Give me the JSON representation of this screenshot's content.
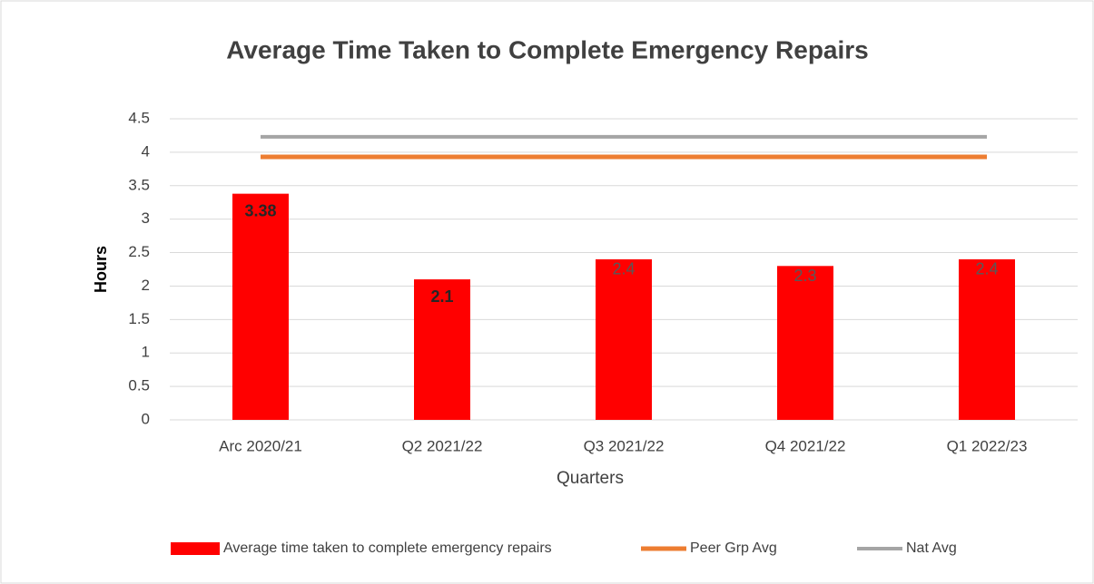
{
  "chart_data": {
    "type": "bar",
    "title": "Average Time Taken to Complete Emergency Repairs",
    "y_label": "Hours",
    "x_label": "Quarters",
    "categories": [
      "Arc 2020/21",
      "Q2 2021/22",
      "Q3 2021/22",
      "Q4 2021/22",
      "Q1 2022/23"
    ],
    "series": [
      {
        "name": "Average time taken to complete emergency repairs",
        "type": "bar",
        "color": "#ff0000",
        "values": [
          3.38,
          2.1,
          2.4,
          2.3,
          2.4
        ]
      },
      {
        "name": "Peer Grp Avg",
        "type": "line",
        "color": "#ed7d31",
        "values": [
          3.93,
          3.93,
          3.93,
          3.93,
          3.93
        ]
      },
      {
        "name": "Nat Avg",
        "type": "line",
        "color": "#a5a5a5",
        "values": [
          4.23,
          4.23,
          4.23,
          4.23,
          4.23
        ]
      }
    ],
    "ylim": [
      0,
      4.5
    ],
    "yticks": [
      0,
      0.5,
      1,
      1.5,
      2,
      2.5,
      3,
      3.5,
      4,
      4.5
    ],
    "grid": true,
    "legend": "bottom"
  }
}
